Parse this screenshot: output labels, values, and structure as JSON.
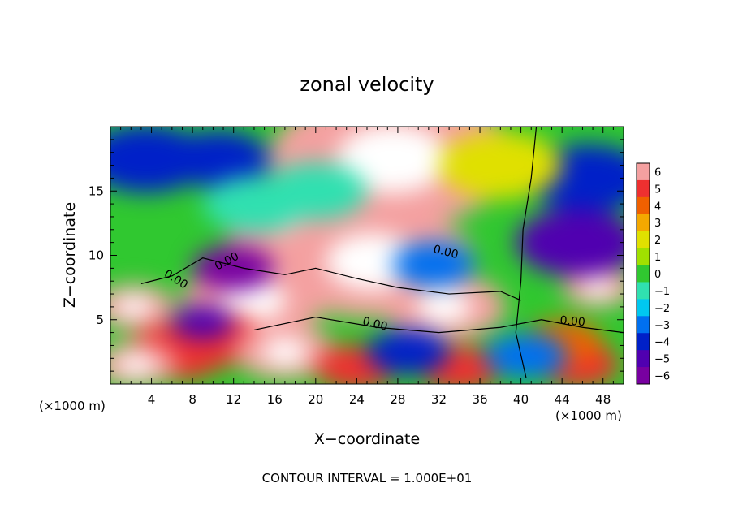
{
  "chart_data": {
    "type": "heatmap",
    "title": "zonal velocity",
    "xlabel": "X−coordinate",
    "ylabel": "Z−coordinate",
    "x_unit_left": "(×1000 m)",
    "x_unit_right": "(×1000 m)",
    "footer": "CONTOUR INTERVAL = 1.000E+01",
    "xlim": [
      0,
      50
    ],
    "ylim": [
      0,
      20
    ],
    "x_ticks": [
      4,
      8,
      12,
      16,
      20,
      24,
      28,
      32,
      36,
      40,
      44,
      48
    ],
    "y_ticks": [
      5,
      10,
      15
    ],
    "colorbar": {
      "levels": [
        6,
        5,
        4,
        3,
        2,
        1,
        0,
        -1,
        -2,
        -3,
        -4,
        -5,
        -6
      ],
      "colors": [
        "#f4a0a0",
        "#ee3030",
        "#f06000",
        "#f4a800",
        "#e0e000",
        "#a0e000",
        "#30c830",
        "#30e0b0",
        "#00c8f0",
        "#0070f0",
        "#0020c8",
        "#5000b0",
        "#7800a0"
      ]
    },
    "contour_labels": [
      {
        "text": "0.00",
        "x": 11.5,
        "y": 9.3,
        "angle": -28
      },
      {
        "text": "0.00",
        "x": 6.2,
        "y": 7.9,
        "angle": 32
      },
      {
        "text": "0.00",
        "x": 32.6,
        "y": 10.0,
        "angle": 14
      },
      {
        "text": "0.00",
        "x": 25.7,
        "y": 4.4,
        "angle": 14
      },
      {
        "text": "0.00",
        "x": 45.0,
        "y": 4.6,
        "angle": 5
      }
    ],
    "blobs": [
      {
        "x": 27.5,
        "y": 17.5,
        "r": 12,
        "v": 6
      },
      {
        "x": 20.5,
        "y": 11.5,
        "r": 9,
        "v": 6
      },
      {
        "x": 25.5,
        "y": 9.5,
        "r": 10,
        "v": 6
      },
      {
        "x": 32.5,
        "y": 6.0,
        "r": 6,
        "v": 6
      },
      {
        "x": 14.0,
        "y": 6.5,
        "r": 7,
        "v": 6
      },
      {
        "x": 10.0,
        "y": 3.5,
        "r": 5,
        "v": 5
      },
      {
        "x": 6.5,
        "y": 2.5,
        "r": 5,
        "v": 5
      },
      {
        "x": 17.0,
        "y": 2.5,
        "r": 5,
        "v": 6
      },
      {
        "x": 24.0,
        "y": 1.3,
        "r": 4,
        "v": 5
      },
      {
        "x": 2.3,
        "y": 6.0,
        "r": 4,
        "v": 6
      },
      {
        "x": 2.5,
        "y": 1.5,
        "r": 4,
        "v": 6
      },
      {
        "x": 34.0,
        "y": 1.2,
        "r": 4,
        "v": 5
      },
      {
        "x": 47.5,
        "y": 7.5,
        "r": 3.5,
        "v": 6
      },
      {
        "x": 45.5,
        "y": 1.5,
        "r": 4,
        "v": 5
      },
      {
        "x": 44.0,
        "y": 3.2,
        "r": 4,
        "v": 4
      },
      {
        "x": 3.5,
        "y": 17.5,
        "r": 6,
        "v": -4
      },
      {
        "x": 10.5,
        "y": 17.5,
        "r": 5,
        "v": -4
      },
      {
        "x": 46.5,
        "y": 16.0,
        "r": 6,
        "v": -4
      },
      {
        "x": 45.5,
        "y": 11.0,
        "r": 6,
        "v": -5
      },
      {
        "x": 12.0,
        "y": 9.0,
        "r": 4,
        "v": -6
      },
      {
        "x": 9.0,
        "y": 4.8,
        "r": 3,
        "v": -5
      },
      {
        "x": 31.5,
        "y": 9.3,
        "r": 4,
        "v": -3
      },
      {
        "x": 29.0,
        "y": 2.5,
        "r": 4,
        "v": -4
      },
      {
        "x": 40.5,
        "y": 2.2,
        "r": 4,
        "v": -3
      },
      {
        "x": 38.0,
        "y": 17.0,
        "r": 6,
        "v": 2
      },
      {
        "x": 20.0,
        "y": 15.0,
        "r": 5,
        "v": -1
      },
      {
        "x": 14.0,
        "y": 14.0,
        "r": 5,
        "v": -1
      }
    ]
  }
}
